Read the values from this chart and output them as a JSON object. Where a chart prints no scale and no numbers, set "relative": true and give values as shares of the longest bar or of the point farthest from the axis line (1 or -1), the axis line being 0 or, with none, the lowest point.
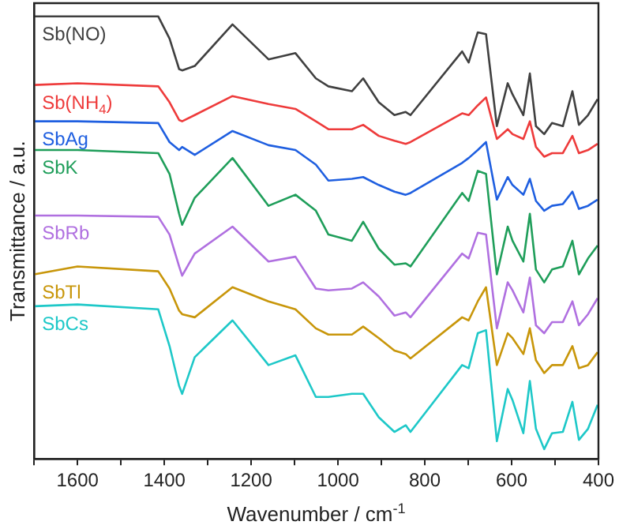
{
  "chart_data": {
    "type": "line",
    "relative": true,
    "xlabel": "Wavenumber / cm$^{-1}$",
    "ylabel": "Transmittance / a.u.",
    "xlim": [
      1700,
      400
    ],
    "xticks": [
      {
        "value": 1700,
        "label": null
      },
      1600,
      {
        "value": 1500,
        "label": null
      },
      1400,
      {
        "value": 1300,
        "label": null
      },
      1200,
      {
        "value": 1100,
        "label": null
      },
      1000,
      {
        "value": 900,
        "label": null
      },
      800,
      {
        "value": 700,
        "label": null
      },
      600,
      {
        "value": 500,
        "label": null
      },
      400
    ],
    "x": [
      1700,
      1600,
      1414,
      1388,
      1366,
      1359,
      1330,
      1243,
      1160,
      1098,
      1051,
      1022,
      968,
      942,
      906,
      870,
      844,
      833,
      714,
      699,
      678,
      659,
      634,
      609,
      598,
      573,
      558,
      544,
      525,
      507,
      482,
      460,
      445,
      424,
      402
    ],
    "legend": false,
    "grid": false,
    "marker": "none",
    "line_style": "solid",
    "series": [
      {
        "name": "Sb(NO)",
        "color": "#404040",
        "values": [
          1,
          1,
          1,
          0.95,
          0.881,
          0.878,
          0.888,
          0.982,
          0.903,
          0.917,
          0.86,
          0.842,
          0.831,
          0.86,
          0.806,
          0.777,
          0.784,
          0.777,
          0.921,
          0.896,
          0.964,
          0.96,
          0.752,
          0.849,
          0.824,
          0.777,
          0.871,
          0.752,
          0.734,
          0.759,
          0.752,
          0.831,
          0.755,
          0.777,
          0.813
        ]
      },
      {
        "name": "Sb(NH$_{4}$)",
        "color": "#ee3b3b",
        "values": [
          0.845,
          0.849,
          0.842,
          0.806,
          0.766,
          0.763,
          0.777,
          0.82,
          0.802,
          0.791,
          0.763,
          0.745,
          0.745,
          0.755,
          0.73,
          0.719,
          0.712,
          0.716,
          0.781,
          0.777,
          0.799,
          0.817,
          0.723,
          0.745,
          0.734,
          0.723,
          0.763,
          0.705,
          0.683,
          0.691,
          0.691,
          0.73,
          0.691,
          0.698,
          0.712
        ]
      },
      {
        "name": "SbAg",
        "color": "#1f5fe0",
        "values": [
          0.763,
          0.763,
          0.759,
          0.716,
          0.698,
          0.705,
          0.687,
          0.741,
          0.709,
          0.698,
          0.665,
          0.629,
          0.633,
          0.637,
          0.619,
          0.604,
          0.597,
          0.601,
          0.669,
          0.68,
          0.698,
          0.716,
          0.586,
          0.637,
          0.619,
          0.597,
          0.633,
          0.583,
          0.561,
          0.572,
          0.576,
          0.604,
          0.565,
          0.572,
          0.586
        ]
      },
      {
        "name": "SbK",
        "color": "#1f9e5a",
        "values": [
          0.698,
          0.698,
          0.691,
          0.644,
          0.554,
          0.529,
          0.59,
          0.68,
          0.572,
          0.597,
          0.561,
          0.507,
          0.493,
          0.536,
          0.475,
          0.439,
          0.442,
          0.435,
          0.601,
          0.583,
          0.651,
          0.644,
          0.417,
          0.525,
          0.493,
          0.446,
          0.554,
          0.428,
          0.399,
          0.428,
          0.435,
          0.493,
          0.417,
          0.453,
          0.482
        ]
      },
      {
        "name": "SbRb",
        "color": "#b070e0",
        "values": [
          0.55,
          0.55,
          0.547,
          0.507,
          0.435,
          0.414,
          0.464,
          0.525,
          0.446,
          0.457,
          0.385,
          0.381,
          0.385,
          0.399,
          0.367,
          0.324,
          0.331,
          0.32,
          0.464,
          0.453,
          0.511,
          0.507,
          0.295,
          0.399,
          0.381,
          0.331,
          0.41,
          0.302,
          0.284,
          0.309,
          0.309,
          0.356,
          0.302,
          0.327,
          0.363
        ]
      },
      {
        "name": "SbTl",
        "color": "#c8960a",
        "values": [
          0.417,
          0.435,
          0.424,
          0.385,
          0.335,
          0.327,
          0.32,
          0.388,
          0.356,
          0.338,
          0.295,
          0.281,
          0.281,
          0.299,
          0.273,
          0.245,
          0.237,
          0.227,
          0.32,
          0.313,
          0.356,
          0.388,
          0.212,
          0.284,
          0.273,
          0.237,
          0.295,
          0.223,
          0.194,
          0.212,
          0.212,
          0.255,
          0.205,
          0.212,
          0.241
        ]
      },
      {
        "name": "SbCs",
        "color": "#1ec8c8",
        "values": [
          0.345,
          0.349,
          0.338,
          0.255,
          0.165,
          0.147,
          0.23,
          0.313,
          0.212,
          0.234,
          0.14,
          0.14,
          0.147,
          0.147,
          0.094,
          0.061,
          0.076,
          0.061,
          0.212,
          0.205,
          0.284,
          0.291,
          0.04,
          0.158,
          0.133,
          0.058,
          0.176,
          0.068,
          0.022,
          0.058,
          0.061,
          0.129,
          0.043,
          0.068,
          0.122
        ]
      }
    ]
  }
}
